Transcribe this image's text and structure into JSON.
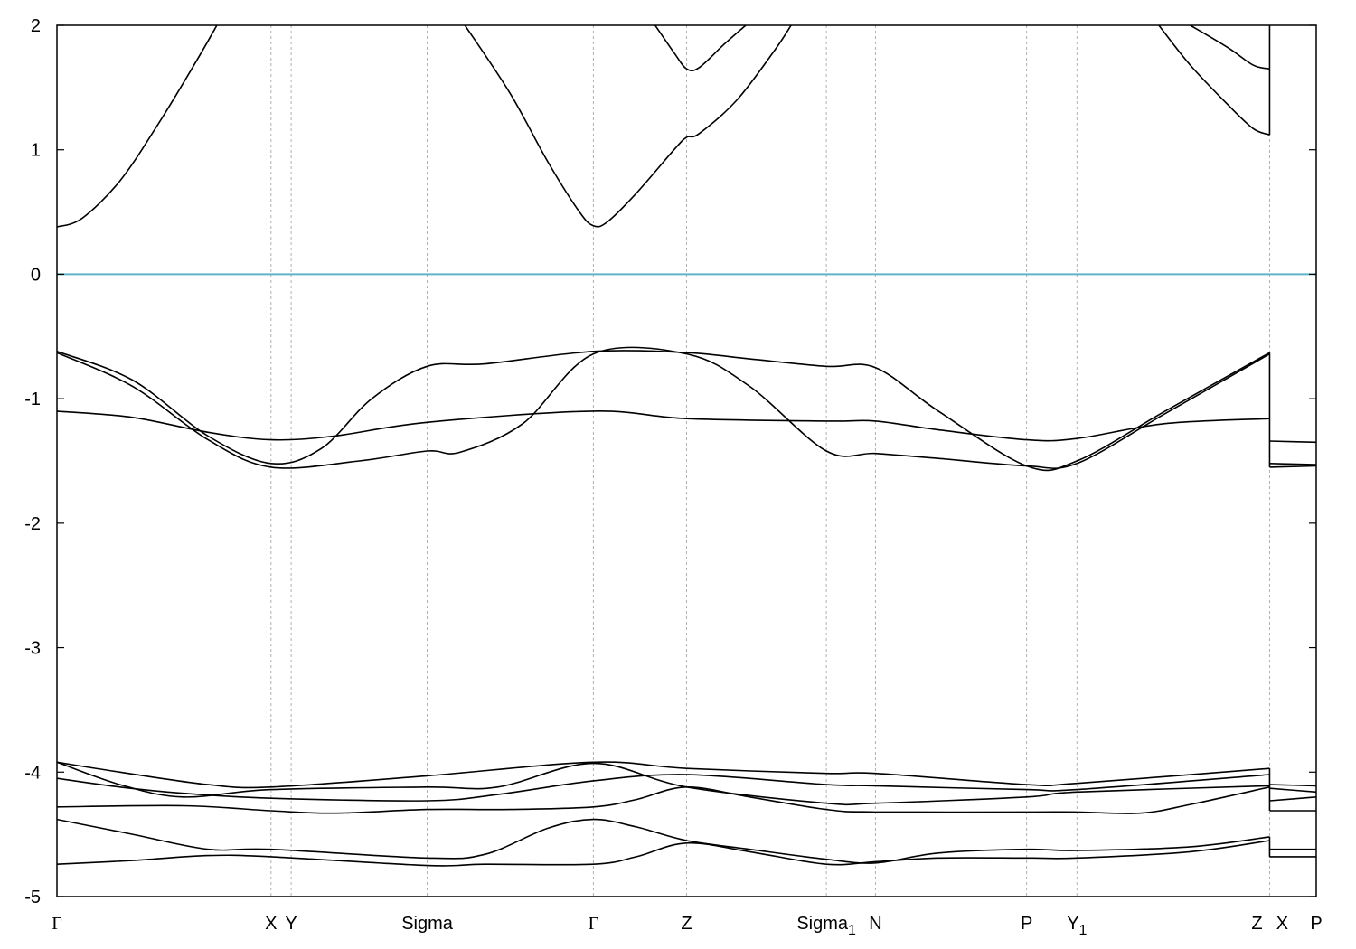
{
  "chart_data": {
    "type": "line",
    "title": "",
    "xlabel": "",
    "ylabel": "",
    "ylim": [
      -5,
      2
    ],
    "yticks": [
      "2",
      "1",
      "0",
      "-1",
      "-2",
      "-3",
      "-4",
      "-5"
    ],
    "zero_line": 0,
    "grid": "vertical dashed lines at high-symmetry points",
    "colors": {
      "bands": "#000000",
      "zero_line": "#5fb3c8",
      "gridlines": "#b0b0b0"
    },
    "kpoint_positions": [
      0,
      0.17,
      0.186,
      0.294,
      0.426,
      0.5,
      0.611,
      0.65,
      0.77,
      0.81,
      0.963,
      1.0
    ],
    "kpoint_labels": [
      {
        "label": "Γ",
        "sub": "",
        "symbol": true
      },
      {
        "label": "X",
        "sub": "",
        "symbol": false
      },
      {
        "label": "Y",
        "sub": "",
        "symbol": false
      },
      {
        "label": "Sigma",
        "sub": "",
        "symbol": false
      },
      {
        "label": "Γ",
        "sub": "",
        "symbol": true
      },
      {
        "label": "Z",
        "sub": "",
        "symbol": false
      },
      {
        "label": "Sigma",
        "sub": "1",
        "symbol": false
      },
      {
        "label": "N",
        "sub": "",
        "symbol": false
      },
      {
        "label": "P",
        "sub": "",
        "symbol": false
      },
      {
        "label": "Y",
        "sub": "1",
        "symbol": false
      },
      {
        "label": "Z",
        "sub": "",
        "symbol": false
      },
      {
        "label": "X",
        "sub": "",
        "symbol": false
      },
      {
        "label": "P",
        "sub": "",
        "symbol": false
      }
    ],
    "kpoint_label_positions": [
      0,
      0.17,
      0.186,
      0.294,
      0.426,
      0.5,
      0.611,
      0.65,
      0.77,
      0.81,
      0.953,
      0.973,
      1.0
    ],
    "series": [
      {
        "values": [
          [
            0,
            0.38
          ],
          [
            0.02,
            0.45
          ],
          [
            0.05,
            0.75
          ],
          [
            0.08,
            1.2
          ],
          [
            0.11,
            1.7
          ],
          [
            0.127,
            2.0
          ]
        ]
      },
      {
        "values": [
          [
            0.324,
            2.0
          ],
          [
            0.36,
            1.45
          ],
          [
            0.39,
            0.9
          ],
          [
            0.415,
            0.5
          ],
          [
            0.426,
            0.39
          ],
          [
            0.437,
            0.42
          ],
          [
            0.46,
            0.65
          ],
          [
            0.49,
            1.0
          ],
          [
            0.5,
            1.1
          ],
          [
            0.51,
            1.13
          ],
          [
            0.54,
            1.4
          ],
          [
            0.57,
            1.8
          ],
          [
            0.583,
            2.0
          ]
        ]
      },
      {
        "values": [
          [
            0.475,
            2.0
          ],
          [
            0.49,
            1.78
          ],
          [
            0.5,
            1.65
          ],
          [
            0.51,
            1.66
          ],
          [
            0.53,
            1.85
          ],
          [
            0.547,
            2.0
          ]
        ]
      },
      {
        "values": [
          [
            0.875,
            2.0
          ],
          [
            0.9,
            1.68
          ],
          [
            0.93,
            1.36
          ],
          [
            0.95,
            1.17
          ],
          [
            0.963,
            1.12
          ]
        ]
      },
      {
        "values": [
          [
            0.9,
            2.0
          ],
          [
            0.93,
            1.82
          ],
          [
            0.95,
            1.68
          ],
          [
            0.963,
            1.65
          ]
        ]
      },
      {
        "values": [
          [
            0,
            -0.62
          ],
          [
            0.06,
            -0.85
          ],
          [
            0.12,
            -1.3
          ],
          [
            0.17,
            -1.52
          ],
          [
            0.21,
            -1.4
          ],
          [
            0.25,
            -1.0
          ],
          [
            0.294,
            -0.74
          ],
          [
            0.34,
            -0.72
          ],
          [
            0.426,
            -0.62
          ],
          [
            0.5,
            -0.63
          ],
          [
            0.55,
            -0.68
          ],
          [
            0.611,
            -0.74
          ],
          [
            0.65,
            -0.75
          ],
          [
            0.7,
            -1.1
          ],
          [
            0.77,
            -1.54
          ],
          [
            0.81,
            -1.5
          ],
          [
            0.88,
            -1.1
          ],
          [
            0.963,
            -0.63
          ]
        ]
      },
      {
        "values": [
          [
            0,
            -0.63
          ],
          [
            0.06,
            -0.9
          ],
          [
            0.12,
            -1.33
          ],
          [
            0.17,
            -1.55
          ],
          [
            0.24,
            -1.5
          ],
          [
            0.294,
            -1.42
          ],
          [
            0.32,
            -1.43
          ],
          [
            0.37,
            -1.2
          ],
          [
            0.426,
            -0.64
          ],
          [
            0.5,
            -0.64
          ],
          [
            0.55,
            -0.9
          ],
          [
            0.611,
            -1.42
          ],
          [
            0.65,
            -1.44
          ],
          [
            0.7,
            -1.48
          ],
          [
            0.77,
            -1.54
          ],
          [
            0.81,
            -1.52
          ],
          [
            0.88,
            -1.12
          ],
          [
            0.963,
            -0.64
          ]
        ]
      },
      {
        "values": [
          [
            0,
            -1.1
          ],
          [
            0.06,
            -1.15
          ],
          [
            0.12,
            -1.27
          ],
          [
            0.17,
            -1.33
          ],
          [
            0.22,
            -1.3
          ],
          [
            0.294,
            -1.19
          ],
          [
            0.426,
            -1.1
          ],
          [
            0.5,
            -1.16
          ],
          [
            0.611,
            -1.18
          ],
          [
            0.65,
            -1.18
          ],
          [
            0.7,
            -1.25
          ],
          [
            0.77,
            -1.33
          ],
          [
            0.81,
            -1.32
          ],
          [
            0.88,
            -1.2
          ],
          [
            0.963,
            -1.16
          ]
        ]
      },
      {
        "values": [
          [
            0,
            -3.92
          ],
          [
            0.05,
            -4.0
          ],
          [
            0.12,
            -4.1
          ],
          [
            0.17,
            -4.12
          ],
          [
            0.294,
            -4.03
          ],
          [
            0.426,
            -3.92
          ],
          [
            0.5,
            -3.97
          ],
          [
            0.611,
            -4.01
          ],
          [
            0.65,
            -4.01
          ],
          [
            0.77,
            -4.1
          ],
          [
            0.81,
            -4.09
          ],
          [
            0.963,
            -3.97
          ]
        ]
      },
      {
        "values": [
          [
            0,
            -3.92
          ],
          [
            0.05,
            -4.1
          ],
          [
            0.1,
            -4.2
          ],
          [
            0.17,
            -4.14
          ],
          [
            0.294,
            -4.12
          ],
          [
            0.35,
            -4.12
          ],
          [
            0.426,
            -3.93
          ],
          [
            0.5,
            -4.12
          ],
          [
            0.611,
            -4.25
          ],
          [
            0.65,
            -4.25
          ],
          [
            0.77,
            -4.2
          ],
          [
            0.81,
            -4.16
          ],
          [
            0.963,
            -4.11
          ]
        ]
      },
      {
        "values": [
          [
            0,
            -4.05
          ],
          [
            0.05,
            -4.12
          ],
          [
            0.1,
            -4.17
          ],
          [
            0.17,
            -4.21
          ],
          [
            0.294,
            -4.23
          ],
          [
            0.35,
            -4.18
          ],
          [
            0.426,
            -4.07
          ],
          [
            0.5,
            -4.02
          ],
          [
            0.611,
            -4.1
          ],
          [
            0.65,
            -4.11
          ],
          [
            0.77,
            -4.14
          ],
          [
            0.81,
            -4.14
          ],
          [
            0.963,
            -4.02
          ]
        ]
      },
      {
        "values": [
          [
            0,
            -4.28
          ],
          [
            0.1,
            -4.27
          ],
          [
            0.17,
            -4.31
          ],
          [
            0.22,
            -4.33
          ],
          [
            0.294,
            -4.3
          ],
          [
            0.36,
            -4.3
          ],
          [
            0.426,
            -4.28
          ],
          [
            0.46,
            -4.22
          ],
          [
            0.5,
            -4.12
          ],
          [
            0.55,
            -4.2
          ],
          [
            0.611,
            -4.3
          ],
          [
            0.65,
            -4.32
          ],
          [
            0.77,
            -4.32
          ],
          [
            0.81,
            -4.32
          ],
          [
            0.86,
            -4.33
          ],
          [
            0.9,
            -4.26
          ],
          [
            0.963,
            -4.12
          ]
        ]
      },
      {
        "values": [
          [
            0,
            -4.38
          ],
          [
            0.06,
            -4.5
          ],
          [
            0.12,
            -4.62
          ],
          [
            0.17,
            -4.62
          ],
          [
            0.294,
            -4.69
          ],
          [
            0.34,
            -4.66
          ],
          [
            0.39,
            -4.45
          ],
          [
            0.426,
            -4.38
          ],
          [
            0.46,
            -4.44
          ],
          [
            0.5,
            -4.55
          ],
          [
            0.55,
            -4.62
          ],
          [
            0.611,
            -4.7
          ],
          [
            0.65,
            -4.73
          ],
          [
            0.7,
            -4.65
          ],
          [
            0.77,
            -4.62
          ],
          [
            0.81,
            -4.63
          ],
          [
            0.9,
            -4.6
          ],
          [
            0.963,
            -4.52
          ]
        ]
      },
      {
        "values": [
          [
            0,
            -4.74
          ],
          [
            0.06,
            -4.71
          ],
          [
            0.12,
            -4.67
          ],
          [
            0.17,
            -4.68
          ],
          [
            0.294,
            -4.75
          ],
          [
            0.34,
            -4.74
          ],
          [
            0.426,
            -4.74
          ],
          [
            0.46,
            -4.68
          ],
          [
            0.5,
            -4.57
          ],
          [
            0.55,
            -4.64
          ],
          [
            0.611,
            -4.74
          ],
          [
            0.65,
            -4.72
          ],
          [
            0.7,
            -4.69
          ],
          [
            0.77,
            -4.69
          ],
          [
            0.81,
            -4.69
          ],
          [
            0.9,
            -4.64
          ],
          [
            0.963,
            -4.55
          ]
        ]
      },
      {
        "values": [
          [
            0.963,
            -1.34
          ],
          [
            1.0,
            -1.35
          ]
        ]
      },
      {
        "values": [
          [
            0.963,
            -1.52
          ],
          [
            1.0,
            -1.53
          ]
        ]
      },
      {
        "values": [
          [
            0.963,
            -1.55
          ],
          [
            1.0,
            -1.54
          ]
        ]
      },
      {
        "values": [
          [
            0.963,
            -4.1
          ],
          [
            1.0,
            -4.11
          ]
        ]
      },
      {
        "values": [
          [
            0.963,
            -4.13
          ],
          [
            1.0,
            -4.16
          ]
        ]
      },
      {
        "values": [
          [
            0.963,
            -4.23
          ],
          [
            1.0,
            -4.2
          ]
        ]
      },
      {
        "values": [
          [
            0.963,
            -4.31
          ],
          [
            1.0,
            -4.31
          ]
        ]
      },
      {
        "values": [
          [
            0.963,
            -4.62
          ],
          [
            1.0,
            -4.62
          ]
        ]
      },
      {
        "values": [
          [
            0.963,
            -4.68
          ],
          [
            1.0,
            -4.68
          ]
        ]
      }
    ]
  }
}
